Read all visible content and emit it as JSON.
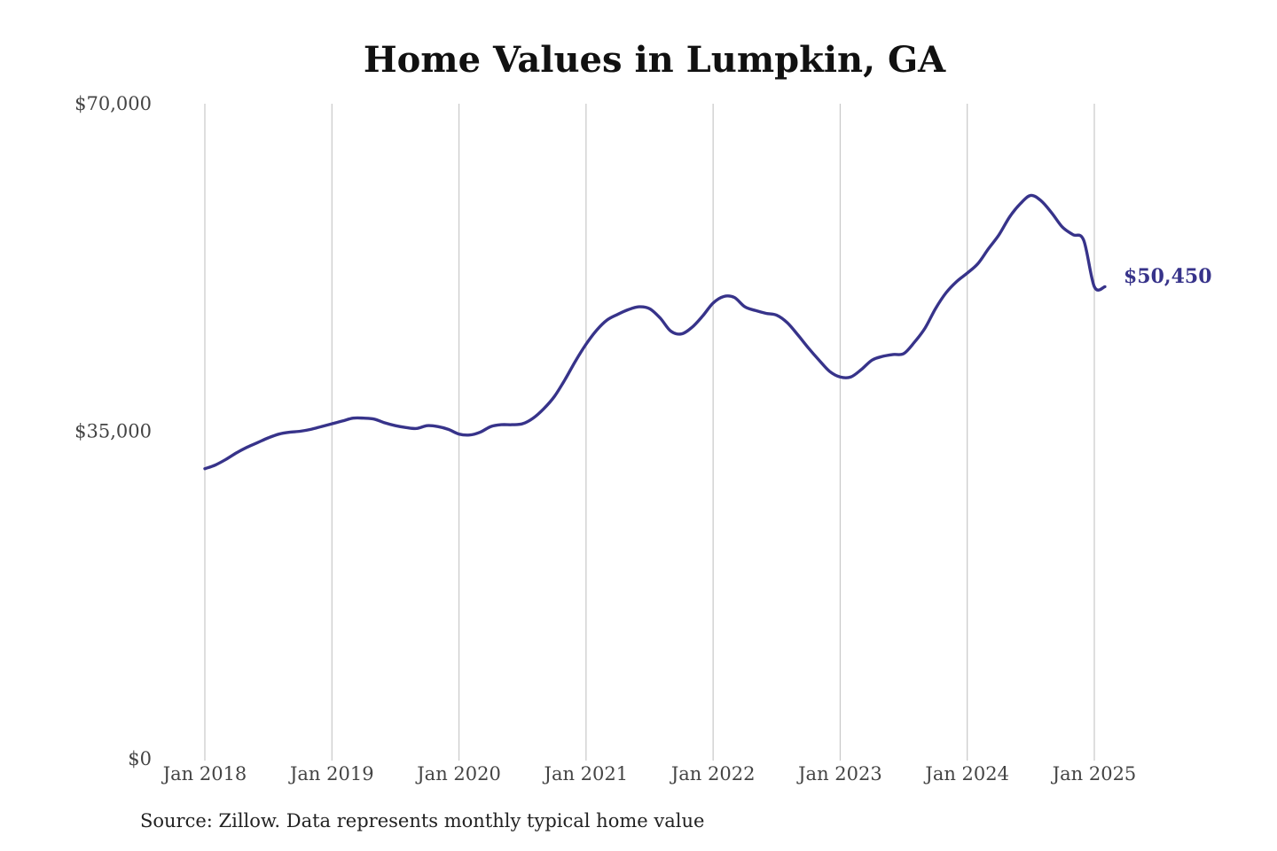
{
  "chart_data": {
    "type": "line",
    "title": "Home Values in Lumpkin, GA",
    "xlabel": "",
    "ylabel": "",
    "ylim": [
      0,
      70000
    ],
    "y_ticks": [
      {
        "value": 0,
        "label": "$0"
      },
      {
        "value": 35000,
        "label": "$35,000"
      },
      {
        "value": 70000,
        "label": "$70,000"
      }
    ],
    "x_ticks": [
      {
        "value": "2018-01",
        "label": "Jan 2018"
      },
      {
        "value": "2019-01",
        "label": "Jan 2019"
      },
      {
        "value": "2020-01",
        "label": "Jan 2020"
      },
      {
        "value": "2021-01",
        "label": "Jan 2021"
      },
      {
        "value": "2022-01",
        "label": "Jan 2022"
      },
      {
        "value": "2023-01",
        "label": "Jan 2023"
      },
      {
        "value": "2024-01",
        "label": "Jan 2024"
      },
      {
        "value": "2025-01",
        "label": "Jan 2025"
      }
    ],
    "grid": {
      "vertical": true,
      "horizontal": false
    },
    "line_color": "#37338a",
    "end_label": "$50,450",
    "series": [
      {
        "x": [
          "2018-01",
          "2018-02",
          "2018-03",
          "2018-04",
          "2018-05",
          "2018-06",
          "2018-07",
          "2018-08",
          "2018-09",
          "2018-10",
          "2018-11",
          "2018-12",
          "2019-01",
          "2019-02",
          "2019-03",
          "2019-04",
          "2019-05",
          "2019-06",
          "2019-07",
          "2019-08",
          "2019-09",
          "2019-10",
          "2019-11",
          "2019-12",
          "2020-01",
          "2020-02",
          "2020-03",
          "2020-04",
          "2020-05",
          "2020-06",
          "2020-07",
          "2020-08",
          "2020-09",
          "2020-10",
          "2020-11",
          "2020-12",
          "2021-01",
          "2021-02",
          "2021-03",
          "2021-04",
          "2021-05",
          "2021-06",
          "2021-07",
          "2021-08",
          "2021-09",
          "2021-10",
          "2021-11",
          "2021-12",
          "2022-01",
          "2022-02",
          "2022-03",
          "2022-04",
          "2022-05",
          "2022-06",
          "2022-07",
          "2022-08",
          "2022-09",
          "2022-10",
          "2022-11",
          "2022-12",
          "2023-01",
          "2023-02",
          "2023-03",
          "2023-04",
          "2023-05",
          "2023-06",
          "2023-07",
          "2023-08",
          "2023-09",
          "2023-10",
          "2023-11",
          "2023-12",
          "2024-01",
          "2024-02",
          "2024-03",
          "2024-04",
          "2024-05",
          "2024-06",
          "2024-07",
          "2024-08",
          "2024-09",
          "2024-10",
          "2024-11",
          "2024-12",
          "2025-01",
          "2025-02"
        ],
        "values": [
          31000,
          31400,
          32000,
          32700,
          33300,
          33800,
          34300,
          34700,
          34900,
          35000,
          35200,
          35500,
          35800,
          36100,
          36400,
          36400,
          36300,
          35900,
          35600,
          35400,
          35300,
          35600,
          35500,
          35200,
          34700,
          34600,
          34900,
          35500,
          35700,
          35700,
          35800,
          36400,
          37400,
          38700,
          40500,
          42500,
          44300,
          45800,
          46900,
          47500,
          48000,
          48300,
          48100,
          47100,
          45700,
          45400,
          46100,
          47300,
          48700,
          49400,
          49300,
          48300,
          47900,
          47600,
          47400,
          46600,
          45300,
          43900,
          42600,
          41400,
          40800,
          40800,
          41600,
          42600,
          43000,
          43200,
          43300,
          44500,
          46000,
          48100,
          49800,
          51000,
          51900,
          52900,
          54500,
          56000,
          57900,
          59300,
          60200,
          59600,
          58300,
          56800,
          56000,
          55400,
          50450,
          50450
        ]
      }
    ]
  },
  "source_text": "Source: Zillow. Data represents monthly typical home value"
}
